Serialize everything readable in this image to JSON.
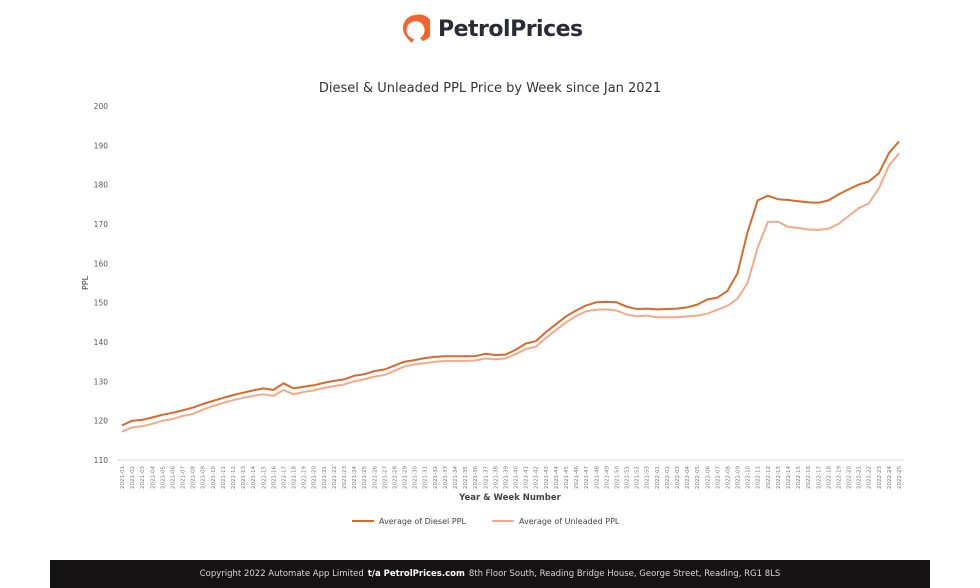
{
  "brand": {
    "name": "PetrolPrices",
    "accent": "#f0642d"
  },
  "chart_data": {
    "type": "line",
    "title": "Diesel & Unleaded PPL Price by Week since Jan 2021",
    "xlabel": "Year & Week Number",
    "ylabel": "PPL",
    "ylim": [
      110,
      200
    ],
    "yticks": [
      110,
      120,
      130,
      140,
      150,
      160,
      170,
      180,
      190,
      200
    ],
    "grid": false,
    "legend_position": "bottom",
    "categories": [
      "2021-01",
      "2021-02",
      "2021-03",
      "2021-04",
      "2021-05",
      "2021-06",
      "2021-07",
      "2021-08",
      "2021-09",
      "2021-10",
      "2021-11",
      "2021-12",
      "2021-13",
      "2021-14",
      "2021-15",
      "2021-16",
      "2021-17",
      "2021-18",
      "2021-19",
      "2021-20",
      "2021-21",
      "2021-22",
      "2021-23",
      "2021-24",
      "2021-25",
      "2021-26",
      "2021-27",
      "2021-28",
      "2021-29",
      "2021-30",
      "2021-31",
      "2021-32",
      "2021-33",
      "2021-34",
      "2021-35",
      "2021-36",
      "2021-37",
      "2021-38",
      "2021-39",
      "2021-40",
      "2021-41",
      "2021-42",
      "2021-43",
      "2021-44",
      "2021-45",
      "2021-46",
      "2021-47",
      "2021-48",
      "2021-49",
      "2021-50",
      "2021-51",
      "2021-52",
      "2021-53",
      "2022-01",
      "2022-02",
      "2022-03",
      "2022-04",
      "2022-05",
      "2022-06",
      "2022-07",
      "2022-08",
      "2022-09",
      "2022-10",
      "2022-11",
      "2022-12",
      "2022-13",
      "2022-14",
      "2022-15",
      "2022-16",
      "2022-17",
      "2022-18",
      "2022-19",
      "2022-20",
      "2022-21",
      "2022-22",
      "2022-23",
      "2022-24",
      "2022-25"
    ],
    "series": [
      {
        "name": "Average of Diesel PPL",
        "color": "#d9692b",
        "values": [
          118.8,
          120,
          120.2,
          120.8,
          121.5,
          122,
          122.6,
          123.3,
          124.2,
          125,
          125.8,
          126.5,
          127.1,
          127.7,
          128.2,
          127.8,
          129.5,
          128.2,
          128.6,
          129,
          129.6,
          130.1,
          130.5,
          131.4,
          131.8,
          132.6,
          133,
          134,
          135,
          135.4,
          135.9,
          136.2,
          136.4,
          136.4,
          136.4,
          136.4,
          137,
          136.7,
          136.8,
          138,
          139.6,
          140.2,
          142.5,
          144.5,
          146.5,
          148,
          149.3,
          150.1,
          150.2,
          150.1,
          149,
          148.4,
          148.5,
          148.3,
          148.4,
          148.5,
          148.8,
          149.5,
          150.8,
          151.3,
          153,
          157.5,
          168,
          176,
          177.2,
          176.3,
          176.1,
          175.8,
          175.5,
          175.4,
          176,
          177.5,
          178.8,
          180,
          180.8,
          182.9,
          188,
          191
        ]
      },
      {
        "name": "Average of Unleaded PPL",
        "color": "#f4a98a",
        "values": [
          117.2,
          118.3,
          118.6,
          119.2,
          120,
          120.4,
          121.2,
          121.7,
          122.8,
          123.7,
          124.5,
          125.2,
          125.8,
          126.3,
          126.7,
          126.3,
          127.8,
          126.7,
          127.3,
          127.7,
          128.3,
          128.8,
          129.2,
          130,
          130.5,
          131.2,
          131.6,
          132.7,
          133.8,
          134.3,
          134.6,
          135,
          135.2,
          135.2,
          135.2,
          135.3,
          135.8,
          135.6,
          135.8,
          136.9,
          138.2,
          138.8,
          141,
          143,
          145,
          146.6,
          147.8,
          148.2,
          148.3,
          148,
          147,
          146.5,
          146.7,
          146.3,
          146.3,
          146.3,
          146.5,
          146.7,
          147.2,
          148.2,
          149.2,
          151,
          155,
          164,
          170.5,
          170.6,
          169.3,
          169,
          168.6,
          168.5,
          168.8,
          170,
          172,
          174,
          175.2,
          179,
          184.8,
          188
        ]
      }
    ]
  },
  "footer": {
    "text_before": "Copyright 2022 Automate App Limited",
    "bold": "t/a PetrolPrices.com",
    "text_after": "8th Floor South, Reading Bridge House, George Street, Reading, RG1 8LS"
  }
}
